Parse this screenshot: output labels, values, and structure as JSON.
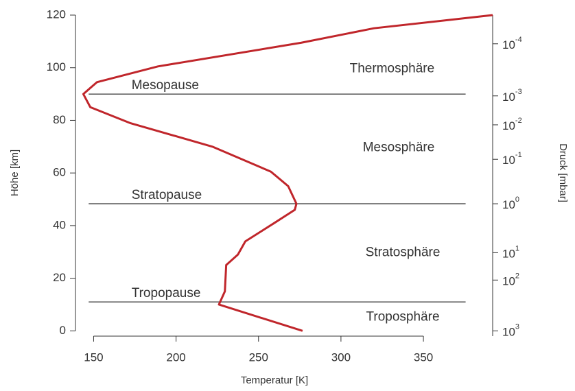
{
  "chart_data": {
    "type": "line",
    "xlabel": "Temperatur [K]",
    "ylabel": "Höhe [km]",
    "y2label": "Druck [mbar]",
    "xlim": [
      139,
      392
    ],
    "ylim": [
      -2,
      120
    ],
    "xticks": [
      150,
      200,
      250,
      300,
      350
    ],
    "yticks": [
      0,
      20,
      40,
      60,
      80,
      100,
      120
    ],
    "y2ticks": [
      {
        "value": 1000,
        "label": "10",
        "exponent": "3",
        "height": 0
      },
      {
        "value": 100,
        "label": "10",
        "exponent": "2",
        "height": 19.3
      },
      {
        "value": 10,
        "label": "10",
        "exponent": "1",
        "height": 29.7
      },
      {
        "value": 1,
        "label": "10",
        "exponent": "0",
        "height": 48.3
      },
      {
        "value": 0.1,
        "label": "10",
        "exponent": "-1",
        "height": 65.2
      },
      {
        "value": 0.01,
        "label": "10",
        "exponent": "-2",
        "height": 78.3
      },
      {
        "value": 0.001,
        "label": "10",
        "exponent": "-3",
        "height": 89.3
      },
      {
        "value": 0.0001,
        "label": "10",
        "exponent": "-4",
        "height": 109.1
      }
    ],
    "series": [
      {
        "color": "#c0262b",
        "x": [
          276.7,
          226,
          229.6,
          230.4,
          237.5,
          242,
          259.6,
          272,
          273,
          268,
          257.5,
          222,
          172,
          148,
          143.75,
          152,
          189,
          276,
          320,
          392
        ],
        "values": [
          0,
          10,
          15,
          25,
          29,
          34,
          41,
          46,
          48.3,
          55,
          60.5,
          70,
          79,
          85,
          90,
          94.5,
          100.5,
          109.5,
          115,
          120
        ]
      }
    ],
    "hlines": [
      {
        "label": "Mesopause",
        "y": 90,
        "xmin": 147,
        "xmax": 375.6,
        "label_x": 173
      },
      {
        "label": "Stratopause",
        "y": 48.3,
        "xmin": 147,
        "xmax": 375.6,
        "label_x": 173
      },
      {
        "label": "Tropopause",
        "y": 11,
        "xmin": 147,
        "xmax": 375.6,
        "label_x": 173
      }
    ],
    "annotations": [
      {
        "text": "Thermosphäre",
        "x": 331,
        "y": 99.6
      },
      {
        "text": "Mesosphäre",
        "x": 335,
        "y": 69.6
      },
      {
        "text": "Stratosphäre",
        "x": 337.5,
        "y": 29.7
      },
      {
        "text": "Troposphäre",
        "x": 337.5,
        "y": 5.2
      }
    ]
  }
}
